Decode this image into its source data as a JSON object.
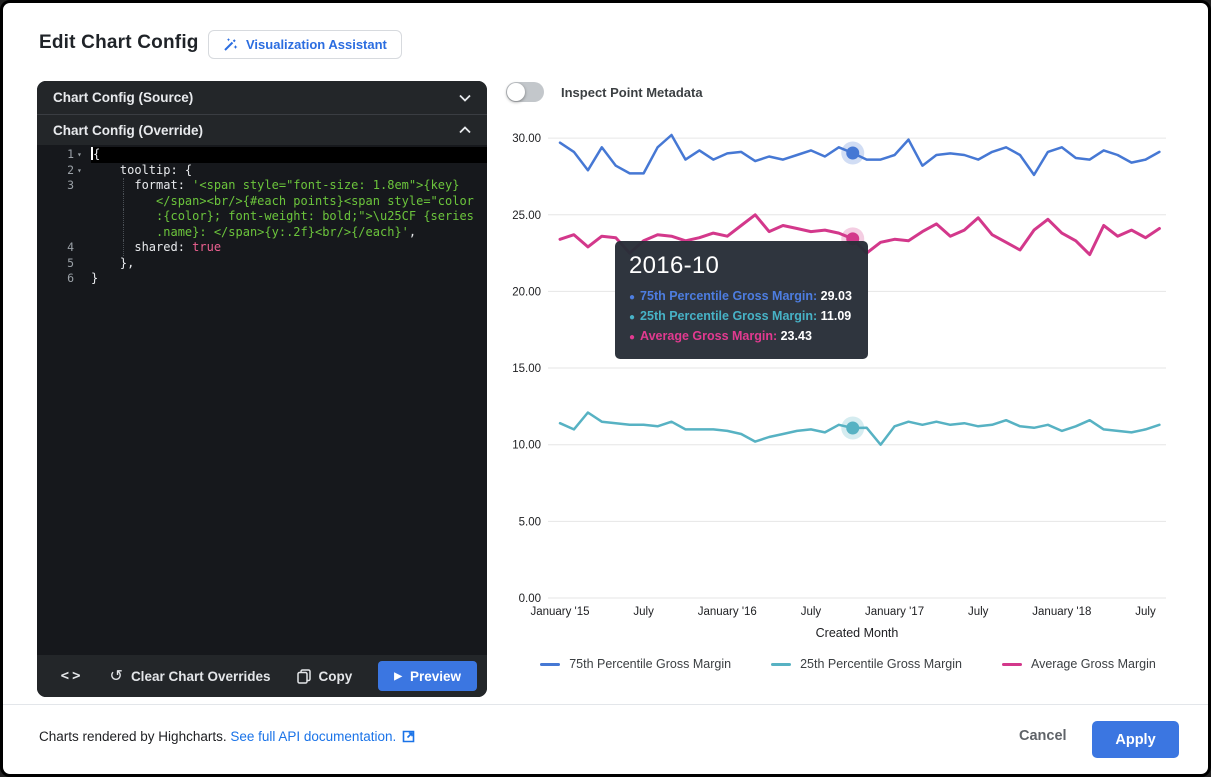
{
  "dialog": {
    "title": "Edit Chart Config",
    "assistant_button": "Visualization Assistant"
  },
  "editor": {
    "source_header": "Chart Config (Source)",
    "override_header": "Chart Config (Override)",
    "lines": [
      {
        "num": "1",
        "fold": true,
        "active": true,
        "segments": [
          {
            "cursor": true
          },
          {
            "t": "{",
            "c": "p"
          }
        ]
      },
      {
        "num": "2",
        "fold": true,
        "segments": [
          {
            "t": "    tooltip: {",
            "c": "p"
          }
        ]
      },
      {
        "num": "3",
        "guide": true,
        "segments": [
          {
            "t": "      format: ",
            "c": "p"
          },
          {
            "t": "'<span style=\"font-size: 1.8em\">{key}",
            "c": "s"
          }
        ]
      },
      {
        "guide": true,
        "segments": [
          {
            "t": "         </span><br/>{#each points}<span style=\"color",
            "c": "s"
          }
        ]
      },
      {
        "guide": true,
        "segments": [
          {
            "t": "         :{color}; font-weight: bold;\">\\u25CF {series",
            "c": "s"
          }
        ]
      },
      {
        "guide": true,
        "segments": [
          {
            "t": "         .name}: </span>{y:.2f}<br/>{/each}'",
            "c": "s"
          },
          {
            "t": ",",
            "c": "p"
          }
        ]
      },
      {
        "num": "4",
        "guide": true,
        "segments": [
          {
            "t": "      shared: ",
            "c": "p"
          },
          {
            "t": "true",
            "c": "b"
          }
        ]
      },
      {
        "num": "5",
        "segments": [
          {
            "t": "    },",
            "c": "p"
          }
        ]
      },
      {
        "num": "6",
        "segments": [
          {
            "t": "}",
            "c": "p"
          }
        ]
      }
    ],
    "toolbar": {
      "clear_label": "Clear Chart Overrides",
      "copy_label": "Copy",
      "preview_label": "Preview"
    }
  },
  "inspect_toggle": {
    "label": "Inspect Point Metadata",
    "state": "off"
  },
  "chart_data": {
    "type": "line",
    "x_unit": "month",
    "x_start": "2015-01",
    "xlabel": "Created Month",
    "ylim": [
      0,
      30
    ],
    "grid": "horizontal",
    "legend_position": "bottom",
    "y_ticks": [
      {
        "value": 30,
        "label": "30.00"
      },
      {
        "value": 25,
        "label": "25.00"
      },
      {
        "value": 20,
        "label": "20.00"
      },
      {
        "value": 15,
        "label": "15.00"
      },
      {
        "value": 10,
        "label": "10.00"
      },
      {
        "value": 5,
        "label": "5.00"
      },
      {
        "value": 0,
        "label": "0.00"
      }
    ],
    "x_ticks": [
      {
        "label": "January '15",
        "month_index": 0
      },
      {
        "label": "July",
        "month_index": 6
      },
      {
        "label": "January '16",
        "month_index": 12
      },
      {
        "label": "July",
        "month_index": 18
      },
      {
        "label": "January '17",
        "month_index": 24
      },
      {
        "label": "July",
        "month_index": 30
      },
      {
        "label": "January '18",
        "month_index": 36
      },
      {
        "label": "July",
        "month_index": 42
      }
    ],
    "highlight_month": "2016-10",
    "highlight_index": 21,
    "series": [
      {
        "name": "75th Percentile Gross Margin",
        "color": "#4678d4",
        "values": [
          29.7,
          29.1,
          27.9,
          29.4,
          28.2,
          27.7,
          27.7,
          29.4,
          30.2,
          28.6,
          29.2,
          28.6,
          29.0,
          29.1,
          28.5,
          28.8,
          28.6,
          28.9,
          29.2,
          28.8,
          29.4,
          29.03,
          28.6,
          28.6,
          28.9,
          29.9,
          28.2,
          28.9,
          29.0,
          28.9,
          28.6,
          29.1,
          29.4,
          28.9,
          27.6,
          29.1,
          29.4,
          28.7,
          28.6,
          29.2,
          28.9,
          28.4,
          28.6,
          29.1
        ]
      },
      {
        "name": "25th Percentile Gross Margin",
        "color": "#57b2c3",
        "values": [
          11.4,
          11.0,
          12.1,
          11.5,
          11.4,
          11.3,
          11.3,
          11.2,
          11.5,
          11.0,
          11.0,
          11.0,
          10.9,
          10.7,
          10.2,
          10.5,
          10.7,
          10.9,
          11.0,
          10.8,
          11.3,
          11.09,
          11.1,
          10.0,
          11.2,
          11.5,
          11.3,
          11.5,
          11.3,
          11.4,
          11.2,
          11.3,
          11.6,
          11.2,
          11.1,
          11.3,
          10.9,
          11.2,
          11.6,
          11.0,
          10.9,
          10.8,
          11.0,
          11.3
        ]
      },
      {
        "name": "Average Gross Margin",
        "color": "#d3388b",
        "values": [
          23.4,
          23.7,
          22.9,
          23.6,
          23.5,
          22.5,
          23.3,
          23.7,
          23.6,
          23.3,
          23.5,
          23.8,
          23.6,
          24.3,
          25.0,
          23.9,
          24.3,
          24.1,
          23.9,
          24.0,
          23.8,
          23.43,
          22.5,
          23.2,
          23.4,
          23.3,
          23.9,
          24.4,
          23.6,
          24.0,
          24.8,
          23.7,
          23.2,
          22.7,
          24.0,
          24.7,
          23.8,
          23.3,
          22.4,
          24.3,
          23.6,
          24.0,
          23.5,
          24.1
        ]
      }
    ]
  },
  "tooltip": {
    "title": "2016-10",
    "rows": [
      {
        "label": "75th Percentile Gross Margin:",
        "value": "29.03",
        "color": "#4d7de0"
      },
      {
        "label": "25th Percentile Gross Margin:",
        "value": "11.09",
        "color": "#47b2c6"
      },
      {
        "label": "Average Gross Margin:",
        "value": "23.43",
        "color": "#e23a90"
      }
    ]
  },
  "footer": {
    "credit": "Charts rendered by Highcharts.",
    "link": "See full API documentation.",
    "cancel_label": "Cancel",
    "apply_label": "Apply"
  }
}
